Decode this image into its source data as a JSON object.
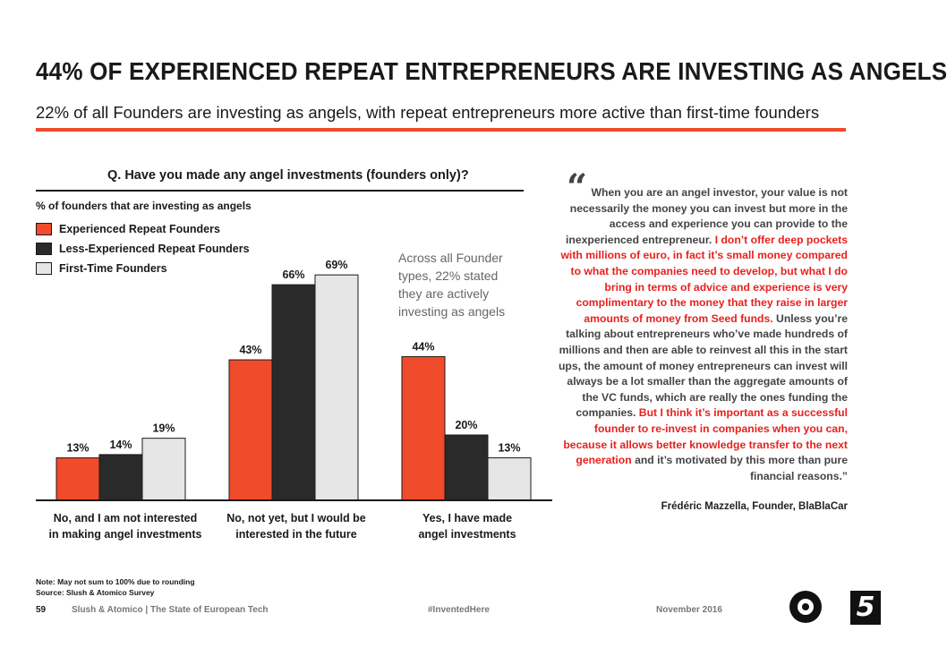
{
  "header": {
    "title": "44% OF EXPERIENCED REPEAT ENTREPRENEURS ARE INVESTING AS ANGELS",
    "subtitle": "22% of all Founders are investing as angels, with repeat entrepreneurs more active than first-time founders",
    "accent_color": "#f04b2a"
  },
  "chart_data": {
    "type": "bar",
    "title": "Q. Have you made any angel investments (founders only)?",
    "ylabel": "% of founders that are investing as angels",
    "categories": [
      [
        "No, and I am not interested",
        "in making angel investments"
      ],
      [
        "No, not yet, but I would be",
        "interested in the future"
      ],
      [
        "Yes, I have made",
        "angel investments"
      ]
    ],
    "series": [
      {
        "name": "Experienced Repeat Founders",
        "color": "#f04b2a",
        "values": [
          13,
          43,
          44
        ],
        "labels": [
          "13%",
          "43%",
          "44%"
        ]
      },
      {
        "name": "Less-Experienced Repeat Founders",
        "color": "#2a2a2a",
        "values": [
          14,
          66,
          20
        ],
        "labels": [
          "14%",
          "66%",
          "20%"
        ]
      },
      {
        "name": "First-Time Founders",
        "color": "#e6e6e6",
        "values": [
          19,
          69,
          13
        ],
        "labels": [
          "19%",
          "69%",
          "13%"
        ]
      }
    ],
    "ylim": [
      0,
      80
    ],
    "annotation": [
      "Across all Founder",
      "types, 22% stated",
      "they are actively",
      "investing as angels"
    ],
    "legend_position": "top-left",
    "grid": false
  },
  "quote": {
    "mark": "“",
    "part1": "When you are an angel investor, your value is not necessarily the money you can invest but more in the access and experience you can provide to the inexperienced entrepreneur. ",
    "red1": "I don’t offer deep pockets with millions of euro, in fact it’s small money compared to what the companies need to develop, but what I do bring in terms of advice and experience is very complimentary to the money that they raise in larger amounts of money from Seed funds.",
    "part2": " Unless you’re talking about entrepreneurs who’ve made hundreds of millions and then are able to reinvest all this in the start ups, the amount of money entrepreneurs can invest will always be a lot smaller than the aggregate amounts of the VC funds, which are really the ones funding the companies. ",
    "red2": "But I think it’s important as a successful founder to re-invest in companies when you can, because it allows better knowledge transfer to the next generation",
    "part3": " and it’s motivated by this more than pure financial reasons.”",
    "attribution": "Frédéric Mazzella, Founder, BlaBlaCar",
    "highlight_color": "#e8211e"
  },
  "notes": {
    "line1": "Note: May not sum to 100% due to rounding",
    "line2": "Source: Slush & Atomico Survey"
  },
  "footer": {
    "page": "59",
    "source": "Slush & Atomico  |  The State of European Tech",
    "hashtag": "#InventedHere",
    "date": "November 2016",
    "logo_atomico": "5"
  }
}
